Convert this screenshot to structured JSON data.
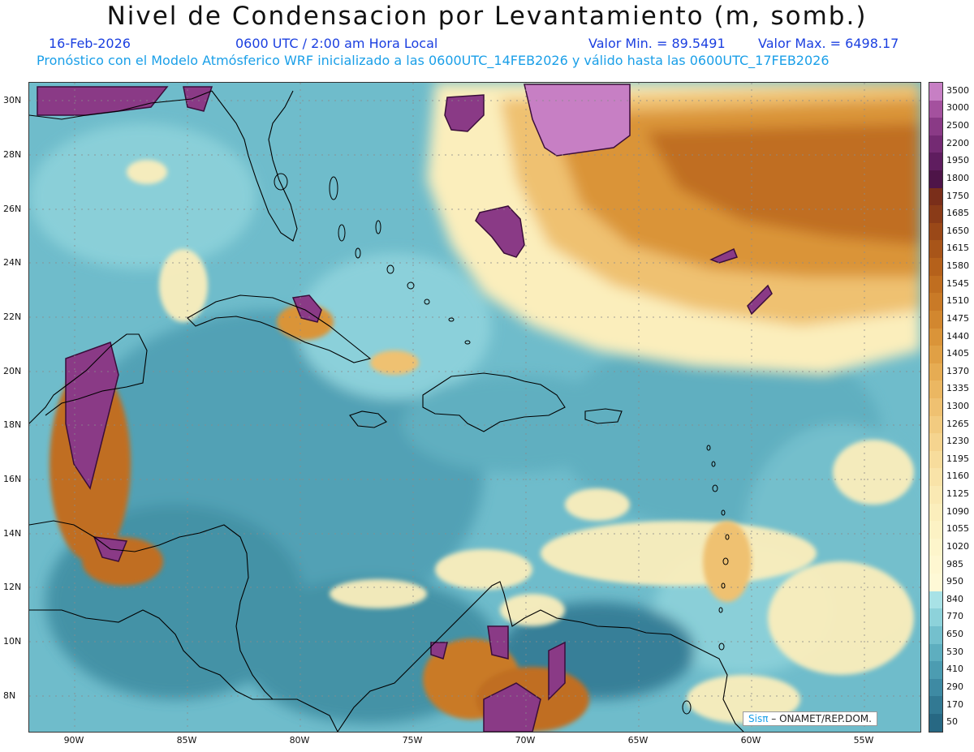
{
  "title": "Nivel de Condensacion por Levantamiento (m, somb.)",
  "date": "16-Feb-2026",
  "time": "0600 UTC / 2:00 am Hora Local",
  "min_label": "Valor Min. = 89.5491",
  "max_label": "Valor Max. = 6498.17",
  "forecast_note": "Pronóstico con el Modelo Atmósferico WRF inicializado a las 0600UTC_14FEB2026 y válido hasta las  0600UTC_17FEB2026",
  "lat_labels": [
    "30N",
    "28N",
    "26N",
    "24N",
    "22N",
    "20N",
    "18N",
    "16N",
    "14N",
    "12N",
    "10N",
    "8N"
  ],
  "lon_labels": [
    "90W",
    "85W",
    "80W",
    "75W",
    "70W",
    "65W",
    "60W",
    "55W"
  ],
  "colorbar_levels": [
    "3500",
    "3000",
    "2500",
    "2200",
    "1950",
    "1800",
    "1750",
    "1685",
    "1650",
    "1615",
    "1580",
    "1545",
    "1510",
    "1475",
    "1440",
    "1405",
    "1370",
    "1335",
    "1300",
    "1265",
    "1230",
    "1195",
    "1160",
    "1125",
    "1090",
    "1055",
    "1020",
    "985",
    "950",
    "840",
    "770",
    "650",
    "530",
    "410",
    "290",
    "170",
    "50"
  ],
  "colorbar_colors": [
    "#c77fc4",
    "#a4519e",
    "#8a3a86",
    "#742a73",
    "#5f1d5f",
    "#4e1448",
    "#7a2e1a",
    "#8a3b18",
    "#9a4818",
    "#a85519",
    "#b5611b",
    "#c06e20",
    "#c97a27",
    "#d2872f",
    "#da9439",
    "#e0a045",
    "#e6ac53",
    "#ebb762",
    "#efc171",
    "#f2cb80",
    "#f5d48f",
    "#f7dc9c",
    "#f9e3a8",
    "#fae9b3",
    "#fbeebc",
    "#fcf2c4",
    "#fdf5cb",
    "#fef7d1",
    "#fef9d6",
    "#a8e2e6",
    "#8dd2da",
    "#74c0cd",
    "#5eaebf",
    "#4c9cb1",
    "#3e8aa3",
    "#327993",
    "#276883"
  ],
  "credit_sis": "Sisπ",
  "credit_rest": "– ONAMET/REP.DOM."
}
